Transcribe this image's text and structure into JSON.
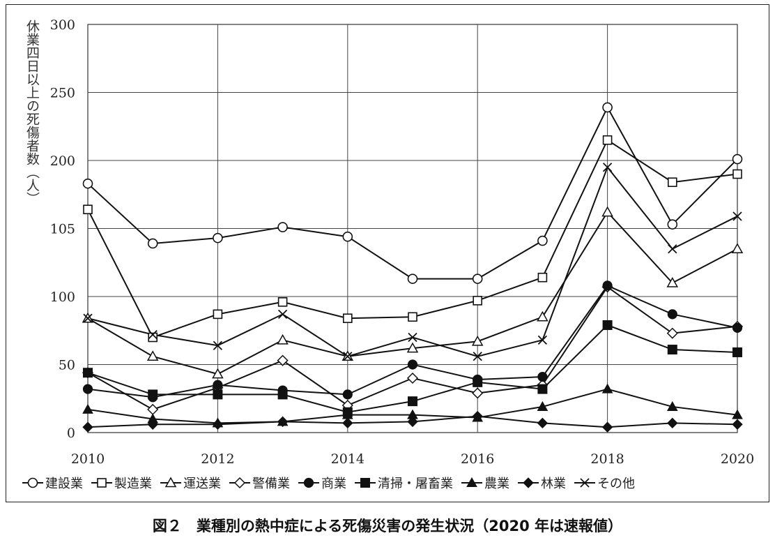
{
  "caption": "図２　業種別の熱中症による死傷災害の発生状況（2020 年は速報値）",
  "chart_data": {
    "type": "line",
    "title": "",
    "xlabel": "",
    "ylabel": "休業四日以上の死傷者数（人）",
    "x": [
      2010,
      2011,
      2012,
      2013,
      2014,
      2015,
      2016,
      2017,
      2018,
      2019,
      2020
    ],
    "xticks": [
      "2010",
      "2012",
      "2014",
      "2016",
      "2018",
      "2020"
    ],
    "ytick_labels": [
      "0",
      "50",
      "100",
      "105",
      "200",
      "250",
      "300"
    ],
    "ylim": [
      0,
      300
    ],
    "grid": true,
    "legend_position": "bottom",
    "series": [
      {
        "name": "建設業",
        "marker": "circle-open",
        "values": [
          183,
          139,
          143,
          151,
          144,
          113,
          113,
          141,
          239,
          153,
          201
        ]
      },
      {
        "name": "製造業",
        "marker": "square-open",
        "values": [
          164,
          70,
          87,
          96,
          84,
          85,
          97,
          114,
          215,
          184,
          190
        ]
      },
      {
        "name": "運送業",
        "marker": "triangle-open",
        "values": [
          84,
          56,
          43,
          68,
          56,
          62,
          67,
          85,
          162,
          110,
          135
        ]
      },
      {
        "name": "警備業",
        "marker": "diamond-open",
        "values": [
          44,
          17,
          33,
          53,
          20,
          40,
          29,
          35,
          107,
          73,
          78
        ]
      },
      {
        "name": "商業",
        "marker": "circle-filled",
        "values": [
          32,
          26,
          35,
          31,
          28,
          50,
          39,
          41,
          108,
          87,
          77
        ]
      },
      {
        "name": "清掃・屠畜業",
        "marker": "square-filled",
        "values": [
          44,
          28,
          28,
          28,
          15,
          23,
          37,
          32,
          79,
          61,
          59
        ]
      },
      {
        "name": "農業",
        "marker": "triangle-filled",
        "values": [
          17,
          10,
          7,
          8,
          13,
          13,
          11,
          19,
          32,
          19,
          13
        ]
      },
      {
        "name": "林業",
        "marker": "diamond-filled",
        "values": [
          4,
          6,
          6,
          8,
          7,
          8,
          12,
          7,
          4,
          7,
          6
        ]
      },
      {
        "name": "その他",
        "marker": "cross",
        "values": [
          84,
          72,
          64,
          87,
          56,
          70,
          56,
          68,
          195,
          135,
          159
        ]
      }
    ]
  }
}
